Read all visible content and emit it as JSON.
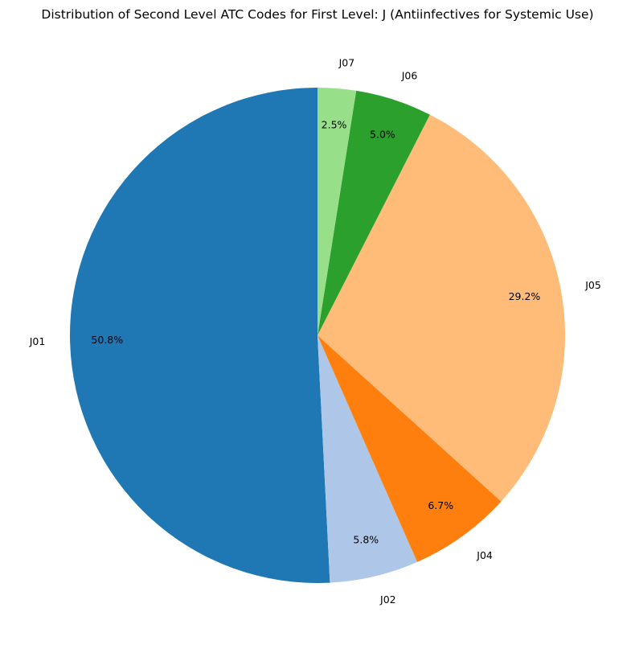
{
  "chart_data": {
    "type": "pie",
    "title": "Distribution of Second Level ATC Codes for First Level: J (Antiinfectives for Systemic Use)",
    "start_angle_deg": 90,
    "direction": "counterclockwise",
    "slices": [
      {
        "label": "J01",
        "value": 50.8,
        "pct_label": "50.8%",
        "color": "#1f77b4"
      },
      {
        "label": "J02",
        "value": 5.8,
        "pct_label": "5.8%",
        "color": "#aec7e8"
      },
      {
        "label": "J04",
        "value": 6.7,
        "pct_label": "6.7%",
        "color": "#ff7f0e"
      },
      {
        "label": "J05",
        "value": 29.2,
        "pct_label": "29.2%",
        "color": "#ffbb78"
      },
      {
        "label": "J06",
        "value": 5.0,
        "pct_label": "5.0%",
        "color": "#2ca02c"
      },
      {
        "label": "J07",
        "value": 2.5,
        "pct_label": "2.5%",
        "color": "#98df8a"
      }
    ]
  }
}
